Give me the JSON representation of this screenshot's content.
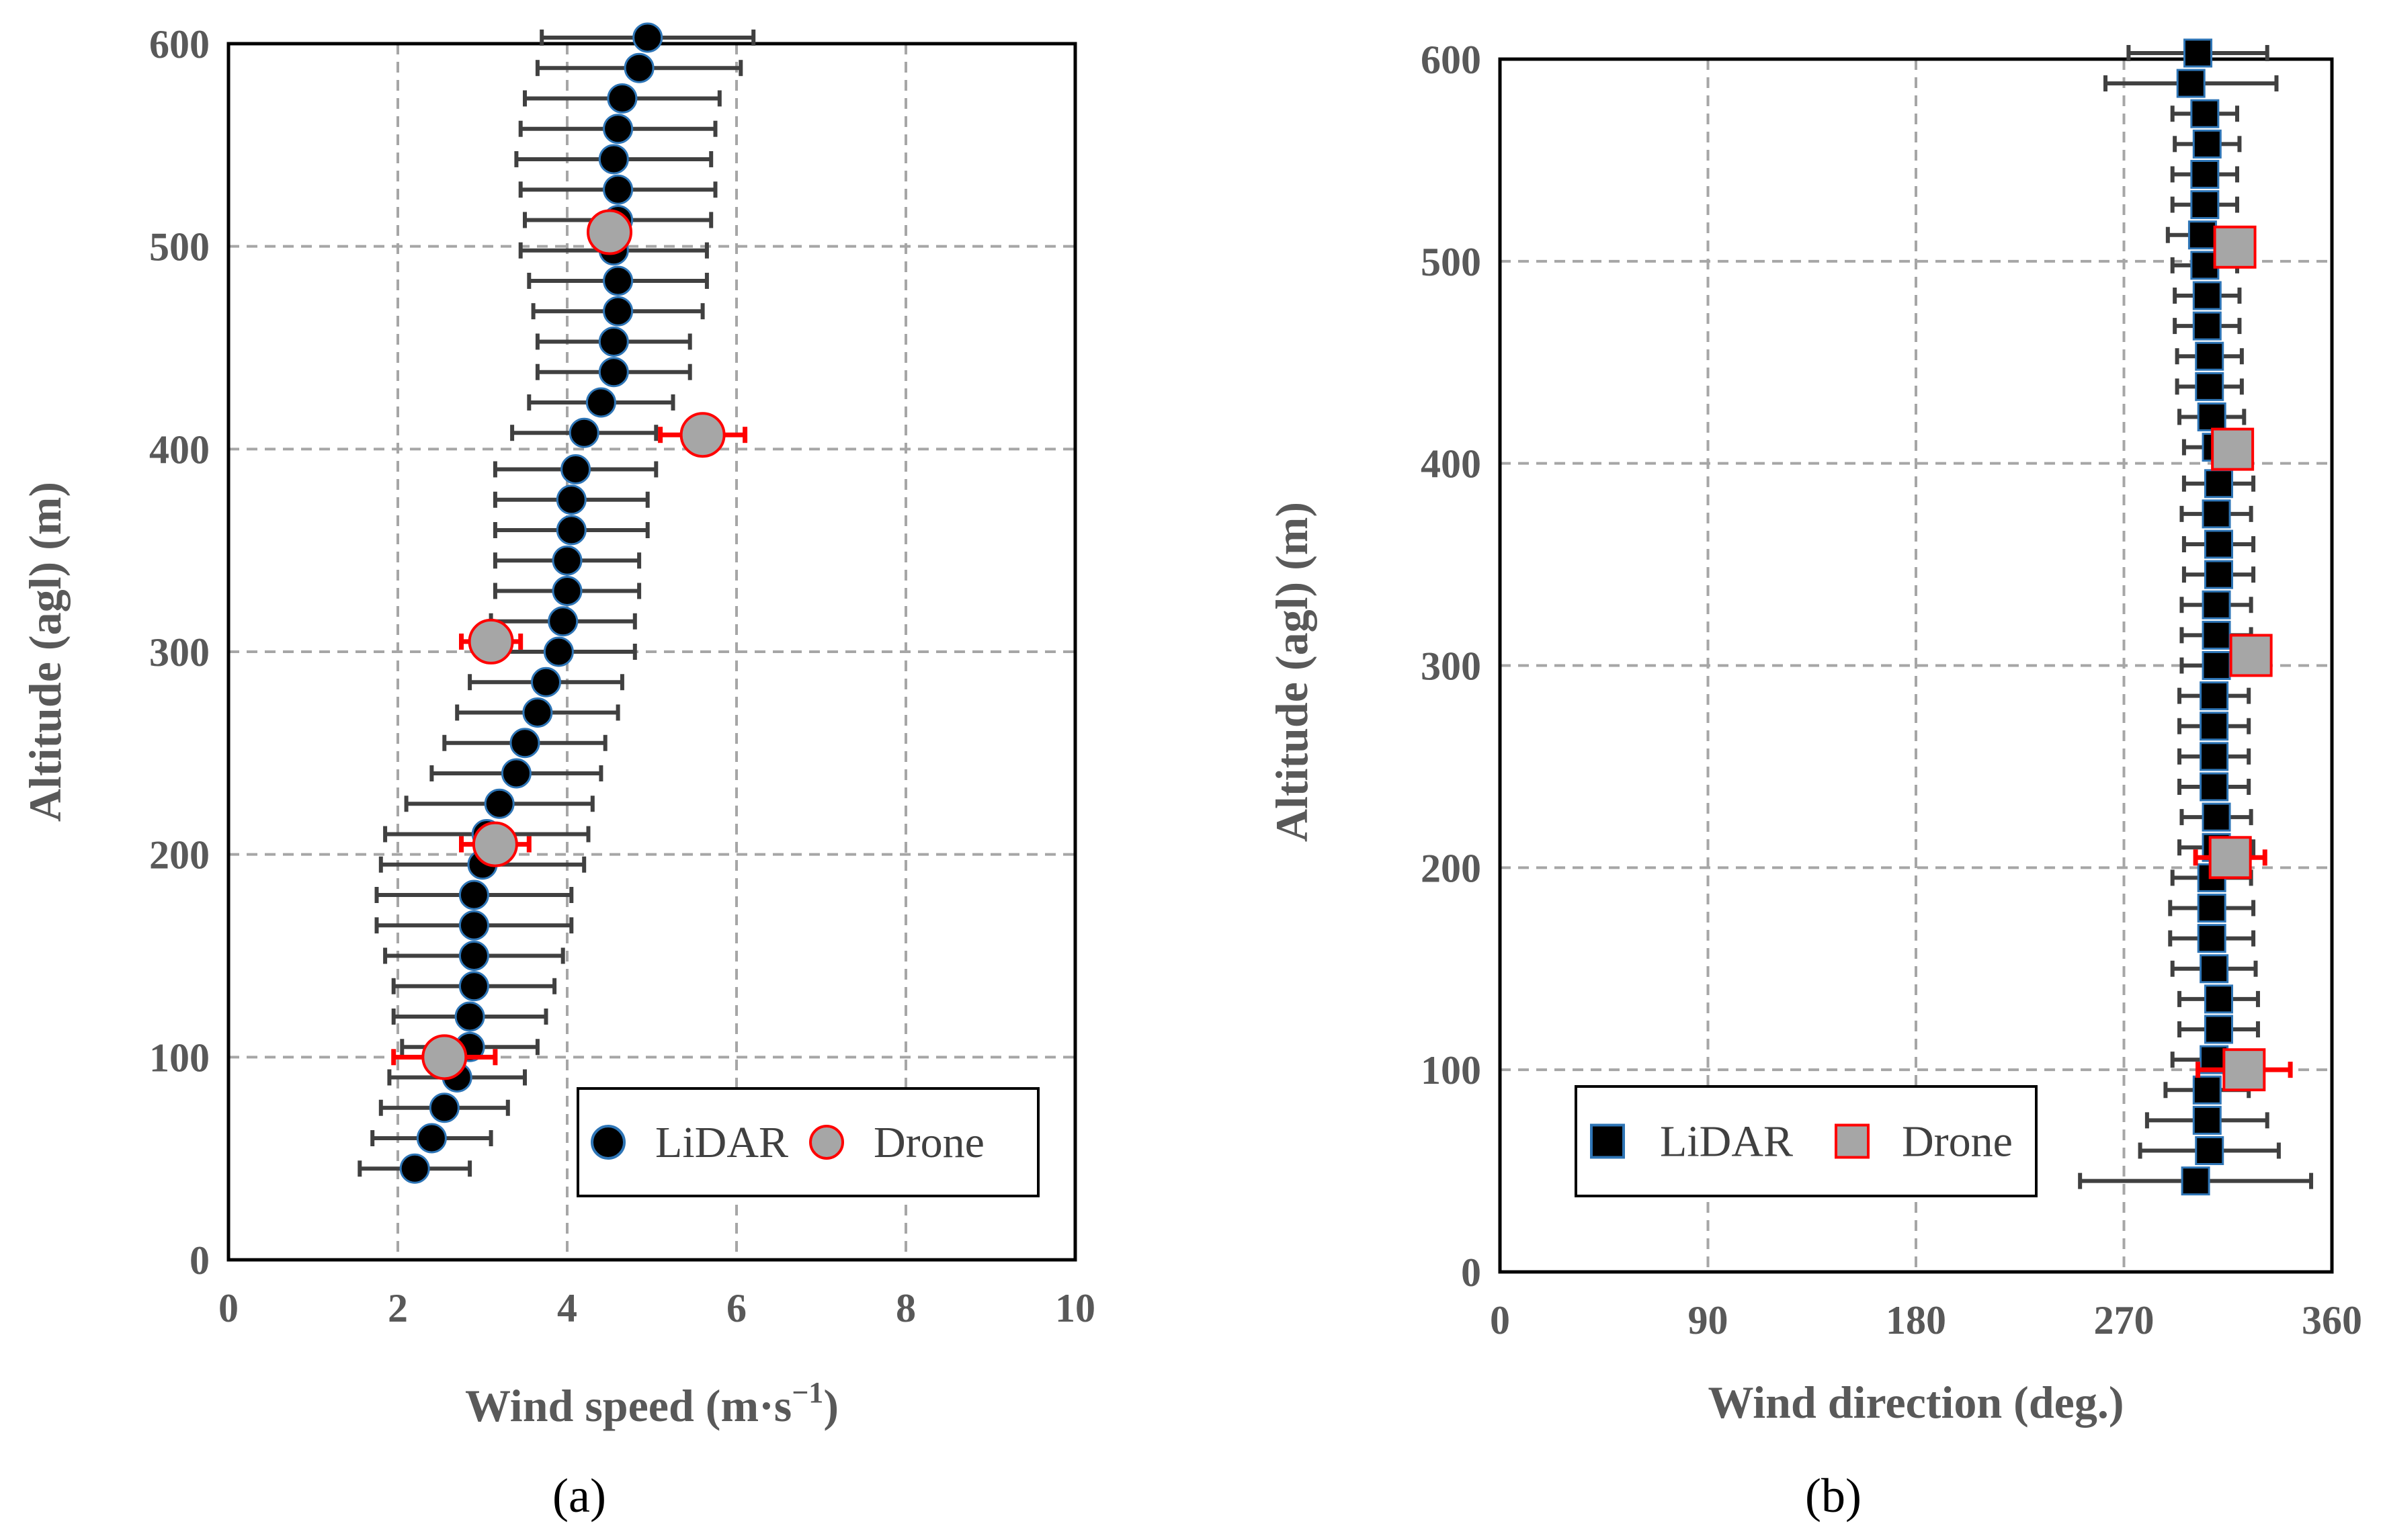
{
  "chart_data": [
    {
      "id": "a",
      "type": "scatter",
      "panel_label": "(a)",
      "xlabel": "Wind speed (m·s⁻¹)",
      "ylabel": "Altitude (agl) (m)",
      "xlim": [
        0,
        10
      ],
      "ylim": [
        0,
        600
      ],
      "xticks": [
        "0",
        "2",
        "4",
        "6",
        "8",
        "10"
      ],
      "yticks": [
        "0",
        "100",
        "200",
        "300",
        "400",
        "500",
        "600"
      ],
      "grid": true,
      "legend_position": "bottom-right",
      "series": [
        {
          "name": "LiDAR",
          "marker": "circle",
          "fill": "#000000",
          "stroke": "#2e75b6",
          "points": [
            {
              "x": 2.2,
              "y": 45,
              "err": 0.65
            },
            {
              "x": 2.4,
              "y": 60,
              "err": 0.7
            },
            {
              "x": 2.55,
              "y": 75,
              "err": 0.75
            },
            {
              "x": 2.7,
              "y": 90,
              "err": 0.8
            },
            {
              "x": 2.85,
              "y": 105,
              "err": 0.8
            },
            {
              "x": 2.85,
              "y": 120,
              "err": 0.9
            },
            {
              "x": 2.9,
              "y": 135,
              "err": 0.95
            },
            {
              "x": 2.9,
              "y": 150,
              "err": 1.05
            },
            {
              "x": 2.9,
              "y": 165,
              "err": 1.15
            },
            {
              "x": 2.9,
              "y": 180,
              "err": 1.15
            },
            {
              "x": 3.0,
              "y": 195,
              "err": 1.2
            },
            {
              "x": 3.05,
              "y": 210,
              "err": 1.2
            },
            {
              "x": 3.2,
              "y": 225,
              "err": 1.1
            },
            {
              "x": 3.4,
              "y": 240,
              "err": 1.0
            },
            {
              "x": 3.5,
              "y": 255,
              "err": 0.95
            },
            {
              "x": 3.65,
              "y": 270,
              "err": 0.95
            },
            {
              "x": 3.75,
              "y": 285,
              "err": 0.9
            },
            {
              "x": 3.9,
              "y": 300,
              "err": 0.9
            },
            {
              "x": 3.95,
              "y": 315,
              "err": 0.85
            },
            {
              "x": 4.0,
              "y": 330,
              "err": 0.85
            },
            {
              "x": 4.0,
              "y": 345,
              "err": 0.85
            },
            {
              "x": 4.05,
              "y": 360,
              "err": 0.9
            },
            {
              "x": 4.05,
              "y": 375,
              "err": 0.9
            },
            {
              "x": 4.1,
              "y": 390,
              "err": 0.95
            },
            {
              "x": 4.2,
              "y": 408,
              "err": 0.85
            },
            {
              "x": 4.4,
              "y": 423,
              "err": 0.85
            },
            {
              "x": 4.55,
              "y": 438,
              "err": 0.9
            },
            {
              "x": 4.55,
              "y": 453,
              "err": 0.9
            },
            {
              "x": 4.6,
              "y": 468,
              "err": 1.0
            },
            {
              "x": 4.6,
              "y": 483,
              "err": 1.05
            },
            {
              "x": 4.55,
              "y": 498,
              "err": 1.1
            },
            {
              "x": 4.6,
              "y": 513,
              "err": 1.1
            },
            {
              "x": 4.6,
              "y": 528,
              "err": 1.15
            },
            {
              "x": 4.55,
              "y": 543,
              "err": 1.15
            },
            {
              "x": 4.6,
              "y": 558,
              "err": 1.15
            },
            {
              "x": 4.65,
              "y": 573,
              "err": 1.15
            },
            {
              "x": 4.85,
              "y": 588,
              "err": 1.2
            },
            {
              "x": 4.95,
              "y": 603,
              "err": 1.25
            }
          ]
        },
        {
          "name": "Drone",
          "marker": "circle",
          "fill": "#a6a6a6",
          "stroke": "#ff0000",
          "points": [
            {
              "x": 2.55,
              "y": 100,
              "err": 0.6
            },
            {
              "x": 3.15,
              "y": 205,
              "err": 0.4
            },
            {
              "x": 3.1,
              "y": 305,
              "err": 0.35
            },
            {
              "x": 5.6,
              "y": 407,
              "err": 0.5
            },
            {
              "x": 4.5,
              "y": 507,
              "err": 0.0
            }
          ]
        }
      ]
    },
    {
      "id": "b",
      "type": "scatter",
      "panel_label": "(b)",
      "xlabel": "Wind direction (deg.)",
      "ylabel": "Altitude (agl) (m)",
      "xlim": [
        0,
        360
      ],
      "ylim": [
        0,
        600
      ],
      "xticks": [
        "0",
        "90",
        "180",
        "270",
        "360"
      ],
      "yticks": [
        "0",
        "100",
        "200",
        "300",
        "400",
        "500",
        "600"
      ],
      "grid": true,
      "legend_position": "bottom-left",
      "series": [
        {
          "name": "LiDAR",
          "marker": "square",
          "fill": "#000000",
          "stroke": "#2e75b6",
          "points": [
            {
              "x": 301,
              "y": 45,
              "err": 50
            },
            {
              "x": 307,
              "y": 60,
              "err": 30
            },
            {
              "x": 306,
              "y": 75,
              "err": 26
            },
            {
              "x": 306,
              "y": 90,
              "err": 18
            },
            {
              "x": 309,
              "y": 105,
              "err": 18
            },
            {
              "x": 311,
              "y": 120,
              "err": 17
            },
            {
              "x": 311,
              "y": 135,
              "err": 17
            },
            {
              "x": 309,
              "y": 150,
              "err": 18
            },
            {
              "x": 308,
              "y": 165,
              "err": 18
            },
            {
              "x": 308,
              "y": 180,
              "err": 18
            },
            {
              "x": 308,
              "y": 195,
              "err": 17
            },
            {
              "x": 310,
              "y": 210,
              "err": 16
            },
            {
              "x": 310,
              "y": 225,
              "err": 15
            },
            {
              "x": 309,
              "y": 240,
              "err": 15
            },
            {
              "x": 309,
              "y": 255,
              "err": 15
            },
            {
              "x": 309,
              "y": 270,
              "err": 15
            },
            {
              "x": 309,
              "y": 285,
              "err": 15
            },
            {
              "x": 310,
              "y": 300,
              "err": 15
            },
            {
              "x": 310,
              "y": 315,
              "err": 15
            },
            {
              "x": 310,
              "y": 330,
              "err": 15
            },
            {
              "x": 311,
              "y": 345,
              "err": 15
            },
            {
              "x": 311,
              "y": 360,
              "err": 15
            },
            {
              "x": 310,
              "y": 375,
              "err": 15
            },
            {
              "x": 311,
              "y": 390,
              "err": 15
            },
            {
              "x": 310,
              "y": 408,
              "err": 14
            },
            {
              "x": 308,
              "y": 423,
              "err": 14
            },
            {
              "x": 307,
              "y": 438,
              "err": 14
            },
            {
              "x": 307,
              "y": 453,
              "err": 14
            },
            {
              "x": 306,
              "y": 468,
              "err": 14
            },
            {
              "x": 306,
              "y": 483,
              "err": 14
            },
            {
              "x": 305,
              "y": 498,
              "err": 14
            },
            {
              "x": 304,
              "y": 513,
              "err": 15
            },
            {
              "x": 305,
              "y": 528,
              "err": 14
            },
            {
              "x": 305,
              "y": 543,
              "err": 14
            },
            {
              "x": 306,
              "y": 558,
              "err": 14
            },
            {
              "x": 305,
              "y": 573,
              "err": 14
            },
            {
              "x": 299,
              "y": 588,
              "err": 37
            },
            {
              "x": 302,
              "y": 603,
              "err": 30
            }
          ]
        },
        {
          "name": "Drone",
          "marker": "square",
          "fill": "#a6a6a6",
          "stroke": "#ff0000",
          "points": [
            {
              "x": 322,
              "y": 100,
              "err": 20
            },
            {
              "x": 316,
              "y": 205,
              "err": 15
            },
            {
              "x": 325,
              "y": 305,
              "err": 6
            },
            {
              "x": 317,
              "y": 407,
              "err": 0
            },
            {
              "x": 318,
              "y": 507,
              "err": 0
            }
          ]
        }
      ]
    }
  ]
}
